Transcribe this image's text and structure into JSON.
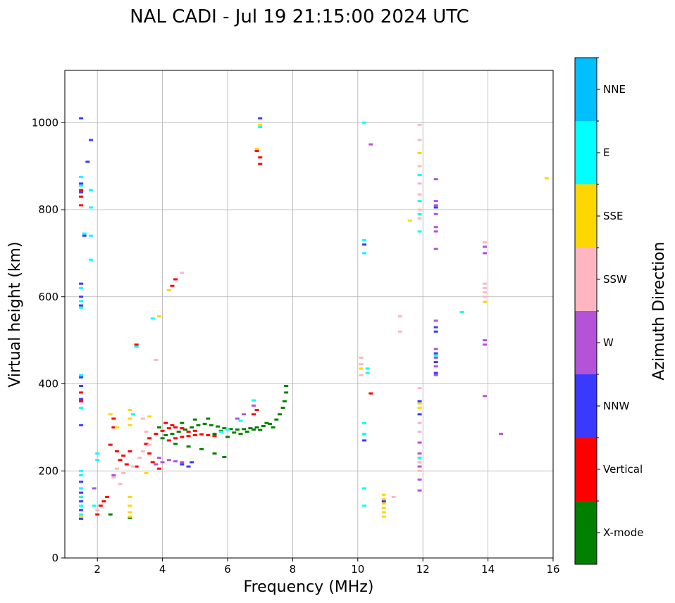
{
  "chart_data": {
    "type": "scatter",
    "title": "NAL CADI - Jul 19 21:15:00 2024 UTC",
    "xlabel": "Frequency (MHz)",
    "ylabel": "Virtual height (km)",
    "xlim": [
      1,
      16
    ],
    "ylim": [
      0,
      1120
    ],
    "xticks": [
      2,
      4,
      6,
      8,
      10,
      12,
      14,
      16
    ],
    "yticks": [
      0,
      200,
      400,
      600,
      800,
      1000
    ],
    "grid": true,
    "colorbar": {
      "label": "Azimuth Direction",
      "categories": [
        "X-mode",
        "Vertical",
        "NNW",
        "W",
        "SSW",
        "SSE",
        "E",
        "NNE"
      ],
      "colors": [
        "#008000",
        "#ff0000",
        "#3a3aff",
        "#b452d8",
        "#ffb6c1",
        "#ffd700",
        "#00ffff",
        "#00bfff"
      ]
    },
    "series": [
      {
        "name": "X-mode",
        "points": [
          [
            4.1,
            282
          ],
          [
            4.3,
            285
          ],
          [
            4.5,
            290
          ],
          [
            4.7,
            295
          ],
          [
            4.9,
            300
          ],
          [
            5.1,
            305
          ],
          [
            5.3,
            308
          ],
          [
            5.5,
            305
          ],
          [
            5.7,
            302
          ],
          [
            5.9,
            298
          ],
          [
            6.1,
            296
          ],
          [
            6.3,
            295
          ],
          [
            6.5,
            296
          ],
          [
            6.7,
            298
          ],
          [
            6.9,
            300
          ],
          [
            7.1,
            303
          ],
          [
            7.3,
            308
          ],
          [
            7.5,
            318
          ],
          [
            7.6,
            330
          ],
          [
            7.7,
            345
          ],
          [
            7.75,
            360
          ],
          [
            7.8,
            380
          ],
          [
            7.8,
            395
          ],
          [
            4.6,
            310
          ],
          [
            5.0,
            318
          ],
          [
            5.4,
            320
          ],
          [
            5.8,
            292
          ],
          [
            6.2,
            288
          ],
          [
            6.6,
            290
          ],
          [
            7.0,
            294
          ],
          [
            7.4,
            300
          ],
          [
            4.4,
            262
          ],
          [
            4.8,
            256
          ],
          [
            5.2,
            250
          ],
          [
            5.6,
            240
          ],
          [
            5.9,
            232
          ],
          [
            3.0,
            92
          ],
          [
            2.4,
            100
          ],
          [
            3.9,
            300
          ],
          [
            4.0,
            275
          ],
          [
            5.6,
            285
          ],
          [
            6.0,
            278
          ],
          [
            6.4,
            285
          ],
          [
            6.8,
            295
          ],
          [
            7.2,
            310
          ]
        ]
      },
      {
        "name": "Vertical",
        "points": [
          [
            3.9,
            205
          ],
          [
            3.7,
            220
          ],
          [
            3.6,
            240
          ],
          [
            3.5,
            262
          ],
          [
            3.6,
            275
          ],
          [
            3.8,
            285
          ],
          [
            4.0,
            292
          ],
          [
            4.2,
            298
          ],
          [
            4.4,
            300
          ],
          [
            4.6,
            298
          ],
          [
            4.2,
            270
          ],
          [
            4.4,
            275
          ],
          [
            4.6,
            278
          ],
          [
            4.8,
            280
          ],
          [
            5.0,
            282
          ],
          [
            5.2,
            284
          ],
          [
            5.4,
            282
          ],
          [
            5.6,
            280
          ],
          [
            4.8,
            290
          ],
          [
            5.0,
            292
          ],
          [
            4.3,
            305
          ],
          [
            4.1,
            310
          ],
          [
            6.8,
            330
          ],
          [
            6.9,
            340
          ],
          [
            2.4,
            260
          ],
          [
            2.6,
            245
          ],
          [
            2.8,
            235
          ],
          [
            3.0,
            245
          ],
          [
            2.7,
            225
          ],
          [
            2.9,
            215
          ],
          [
            3.2,
            210
          ],
          [
            2.2,
            130
          ],
          [
            2.3,
            140
          ],
          [
            2.1,
            120
          ],
          [
            2.0,
            100
          ],
          [
            1.5,
            360
          ],
          [
            1.5,
            380
          ],
          [
            1.5,
            845
          ],
          [
            1.5,
            830
          ],
          [
            1.5,
            810
          ],
          [
            6.9,
            935
          ],
          [
            7.0,
            920
          ],
          [
            7.0,
            905
          ],
          [
            10.4,
            378
          ],
          [
            4.4,
            640
          ],
          [
            4.3,
            625
          ],
          [
            3.2,
            490
          ],
          [
            2.5,
            300
          ],
          [
            2.5,
            320
          ]
        ]
      },
      {
        "name": "NNW",
        "points": [
          [
            1.5,
            1010
          ],
          [
            1.5,
            860
          ],
          [
            1.5,
            840
          ],
          [
            1.6,
            740
          ],
          [
            1.5,
            630
          ],
          [
            1.5,
            600
          ],
          [
            1.5,
            580
          ],
          [
            1.5,
            415
          ],
          [
            1.5,
            395
          ],
          [
            1.5,
            365
          ],
          [
            1.5,
            305
          ],
          [
            1.5,
            175
          ],
          [
            1.5,
            150
          ],
          [
            1.5,
            130
          ],
          [
            1.5,
            110
          ],
          [
            1.5,
            90
          ],
          [
            4.8,
            210
          ],
          [
            4.9,
            220
          ],
          [
            4.6,
            215
          ],
          [
            10.2,
            720
          ],
          [
            10.2,
            270
          ],
          [
            10.8,
            130
          ],
          [
            11.9,
            330
          ],
          [
            11.9,
            360
          ],
          [
            12.4,
            530
          ],
          [
            12.4,
            520
          ],
          [
            12.4,
            470
          ],
          [
            12.4,
            450
          ],
          [
            12.4,
            425
          ],
          [
            12.4,
            805
          ],
          [
            1.8,
            960
          ],
          [
            1.7,
            910
          ],
          [
            7.0,
            1010
          ]
        ]
      },
      {
        "name": "W",
        "points": [
          [
            4.0,
            220
          ],
          [
            4.2,
            225
          ],
          [
            4.4,
            222
          ],
          [
            4.6,
            220
          ],
          [
            3.8,
            215
          ],
          [
            3.9,
            230
          ],
          [
            6.3,
            320
          ],
          [
            6.5,
            330
          ],
          [
            6.8,
            350
          ],
          [
            12.4,
            870
          ],
          [
            12.4,
            820
          ],
          [
            12.4,
            810
          ],
          [
            12.4,
            790
          ],
          [
            12.4,
            760
          ],
          [
            12.4,
            750
          ],
          [
            12.4,
            710
          ],
          [
            12.4,
            545
          ],
          [
            12.4,
            480
          ],
          [
            12.4,
            460
          ],
          [
            12.4,
            440
          ],
          [
            12.4,
            420
          ],
          [
            13.9,
            715
          ],
          [
            13.9,
            700
          ],
          [
            13.9,
            500
          ],
          [
            13.9,
            490
          ],
          [
            13.9,
            372
          ],
          [
            14.4,
            285
          ],
          [
            11.9,
            265
          ],
          [
            11.9,
            240
          ],
          [
            11.9,
            210
          ],
          [
            11.9,
            180
          ],
          [
            11.9,
            155
          ],
          [
            10.4,
            950
          ],
          [
            1.9,
            160
          ],
          [
            2.5,
            190
          ]
        ]
      },
      {
        "name": "SSW",
        "points": [
          [
            2.5,
            185
          ],
          [
            2.6,
            205
          ],
          [
            2.7,
            170
          ],
          [
            2.8,
            195
          ],
          [
            3.1,
            210
          ],
          [
            3.3,
            230
          ],
          [
            3.4,
            245
          ],
          [
            3.6,
            260
          ],
          [
            3.5,
            290
          ],
          [
            4.6,
            655
          ],
          [
            11.9,
            995
          ],
          [
            11.9,
            960
          ],
          [
            11.9,
            930
          ],
          [
            11.9,
            900
          ],
          [
            11.9,
            880
          ],
          [
            11.9,
            860
          ],
          [
            11.9,
            835
          ],
          [
            11.9,
            800
          ],
          [
            11.9,
            780
          ],
          [
            11.9,
            390
          ],
          [
            11.9,
            310
          ],
          [
            11.9,
            290
          ],
          [
            11.9,
            220
          ],
          [
            11.9,
            200
          ],
          [
            11.3,
            555
          ],
          [
            11.3,
            520
          ],
          [
            10.1,
            460
          ],
          [
            10.1,
            445
          ],
          [
            10.1,
            420
          ],
          [
            13.9,
            725
          ],
          [
            13.9,
            630
          ],
          [
            13.9,
            620
          ],
          [
            13.9,
            610
          ],
          [
            13.9,
            600
          ],
          [
            11.1,
            140
          ],
          [
            3.8,
            455
          ],
          [
            2.0,
            110
          ],
          [
            3.4,
            320
          ]
        ]
      },
      {
        "name": "SSE",
        "points": [
          [
            3.0,
            340
          ],
          [
            3.0,
            320
          ],
          [
            3.0,
            305
          ],
          [
            3.0,
            140
          ],
          [
            3.0,
            120
          ],
          [
            3.0,
            105
          ],
          [
            3.0,
            95
          ],
          [
            3.6,
            325
          ],
          [
            3.5,
            195
          ],
          [
            10.8,
            145
          ],
          [
            10.8,
            135
          ],
          [
            10.8,
            125
          ],
          [
            10.8,
            115
          ],
          [
            10.8,
            105
          ],
          [
            10.8,
            95
          ],
          [
            11.9,
            355
          ],
          [
            11.9,
            345
          ],
          [
            11.9,
            930
          ],
          [
            11.6,
            775
          ],
          [
            13.9,
            588
          ],
          [
            15.8,
            872
          ],
          [
            4.2,
            615
          ],
          [
            3.9,
            555
          ],
          [
            10.1,
            435
          ],
          [
            1.5,
            95
          ],
          [
            2.6,
            300
          ],
          [
            6.9,
            940
          ],
          [
            7.0,
            995
          ],
          [
            2.4,
            330
          ]
        ]
      },
      {
        "name": "E",
        "points": [
          [
            1.5,
            875
          ],
          [
            1.5,
            855
          ],
          [
            1.6,
            745
          ],
          [
            1.8,
            845
          ],
          [
            1.8,
            805
          ],
          [
            1.8,
            740
          ],
          [
            1.8,
            685
          ],
          [
            1.5,
            620
          ],
          [
            1.5,
            590
          ],
          [
            1.5,
            575
          ],
          [
            1.5,
            420
          ],
          [
            1.5,
            345
          ],
          [
            1.5,
            200
          ],
          [
            1.5,
            190
          ],
          [
            1.5,
            160
          ],
          [
            1.5,
            140
          ],
          [
            1.5,
            120
          ],
          [
            1.5,
            100
          ],
          [
            1.9,
            120
          ],
          [
            2.0,
            240
          ],
          [
            2.0,
            225
          ],
          [
            3.1,
            330
          ],
          [
            3.7,
            550
          ],
          [
            3.2,
            485
          ],
          [
            5.8,
            290
          ],
          [
            6.0,
            295
          ],
          [
            6.4,
            315
          ],
          [
            6.8,
            362
          ],
          [
            7.0,
            990
          ],
          [
            10.2,
            1000
          ],
          [
            10.2,
            730
          ],
          [
            10.2,
            700
          ],
          [
            10.2,
            310
          ],
          [
            10.2,
            285
          ],
          [
            10.2,
            160
          ],
          [
            10.2,
            120
          ],
          [
            10.3,
            435
          ],
          [
            10.3,
            425
          ],
          [
            11.9,
            880
          ],
          [
            11.9,
            820
          ],
          [
            11.9,
            750
          ],
          [
            11.9,
            230
          ],
          [
            12.4,
            465
          ],
          [
            13.2,
            565
          ],
          [
            11.9,
            790
          ]
        ]
      }
    ]
  }
}
